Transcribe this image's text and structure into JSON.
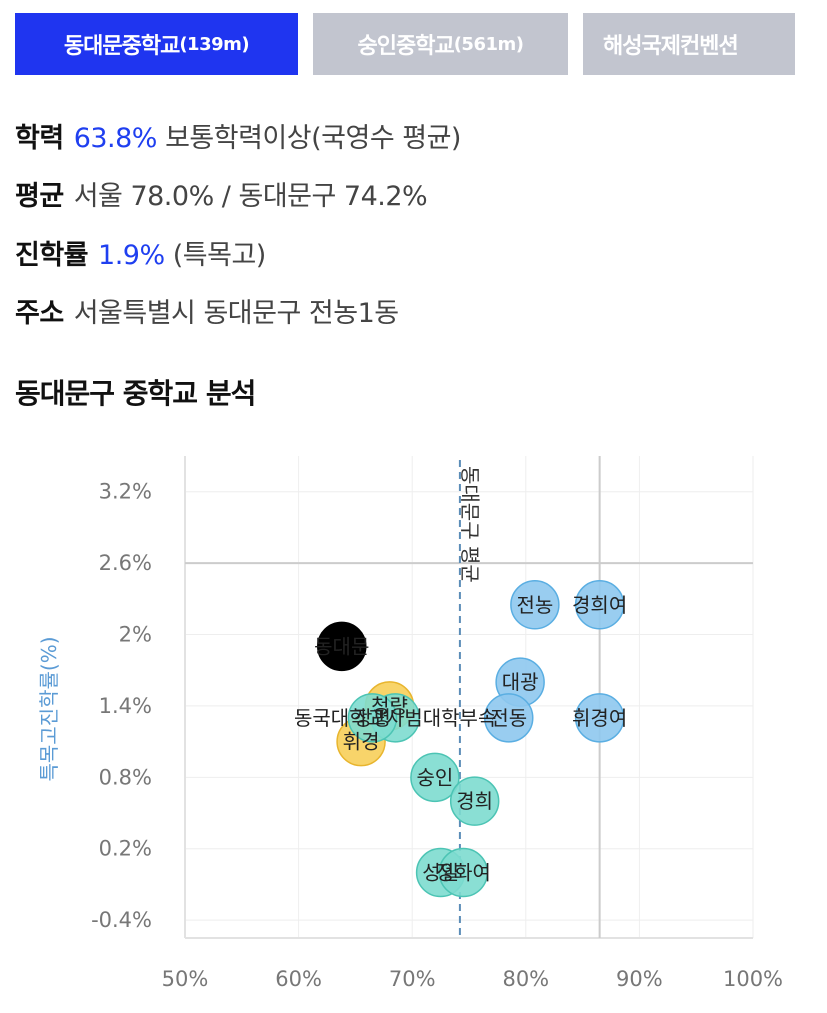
{
  "tabs": [
    {
      "name": "동대문중학교",
      "dist": "(139m)",
      "active": true
    },
    {
      "name": "숭인중학교",
      "dist": "(561m)",
      "active": false
    },
    {
      "name": "해성국제컨벤션",
      "dist": "",
      "active": false
    }
  ],
  "info": {
    "achievement_key": "학력",
    "achievement_value": "63.8%",
    "achievement_desc": "보통학력이상(국영수 평균)",
    "average_key": "평균",
    "average_text": "서울 78.0% / 동대문구 74.2%",
    "progress_key": "진학률",
    "progress_value": "1.9%",
    "progress_desc": "(특목고)",
    "address_key": "주소",
    "address_text": "서울특별시 동대문구 전농1동"
  },
  "section_title": "동대문구 중학교 분석",
  "colors": {
    "selected": "#000000",
    "blue": "#8ec8ee",
    "blue_stroke": "#5aaee2",
    "teal": "#7ddccf",
    "teal_stroke": "#4cc4b4",
    "yellow": "#f7cf5a",
    "yellow_stroke": "#e8b52e",
    "avg_line": "#5b8db8",
    "tab_active": "#1f35f0",
    "highlight": "#1f3ff0"
  },
  "chart_data": {
    "type": "scatter",
    "xlabel": "",
    "ylabel": "특목고진학률(%)",
    "xlim": [
      50,
      100
    ],
    "ylim": [
      -0.4,
      3.2
    ],
    "x_ticks": [
      "50%",
      "60%",
      "70%",
      "80%",
      "90%",
      "100%"
    ],
    "y_ticks": [
      "3.2%",
      "2.6%",
      "2%",
      "1.4%",
      "0.8%",
      "0.2%",
      "-0.4%"
    ],
    "x_tick_values": [
      50,
      60,
      70,
      80,
      90,
      100
    ],
    "y_tick_values": [
      3.2,
      2.6,
      2.0,
      1.4,
      0.8,
      0.2,
      -0.4
    ],
    "avg_line": {
      "x": 74.2,
      "label": "동대문구 평균"
    },
    "ref_lines": {
      "x": 86.5,
      "y": 2.6
    },
    "points": [
      {
        "label": "동대문",
        "x": 63.8,
        "y": 1.9,
        "group": "selected"
      },
      {
        "label": "전농",
        "x": 80.8,
        "y": 2.25,
        "group": "blue"
      },
      {
        "label": "경희여",
        "x": 86.5,
        "y": 2.25,
        "group": "blue"
      },
      {
        "label": "대광",
        "x": 79.5,
        "y": 1.6,
        "group": "blue"
      },
      {
        "label": "휘경여",
        "x": 86.5,
        "y": 1.3,
        "group": "blue"
      },
      {
        "label": "전동",
        "x": 78.5,
        "y": 1.3,
        "group": "blue"
      },
      {
        "label": "청량",
        "x": 68.0,
        "y": 1.4,
        "group": "yellow"
      },
      {
        "label": "휘경",
        "x": 65.5,
        "y": 1.1,
        "group": "yellow"
      },
      {
        "label": "동국대학교사범대학부속",
        "x": 68.5,
        "y": 1.3,
        "group": "teal"
      },
      {
        "label": "숭인",
        "x": 72.0,
        "y": 0.8,
        "group": "teal"
      },
      {
        "label": "경희",
        "x": 75.5,
        "y": 0.6,
        "group": "teal"
      },
      {
        "label": "성일",
        "x": 72.5,
        "y": 0.0,
        "group": "teal"
      },
      {
        "label": "장평",
        "x": 66.5,
        "y": 1.3,
        "group": "teal"
      },
      {
        "label": "정화여",
        "x": 74.5,
        "y": 0.0,
        "group": "teal"
      }
    ]
  }
}
